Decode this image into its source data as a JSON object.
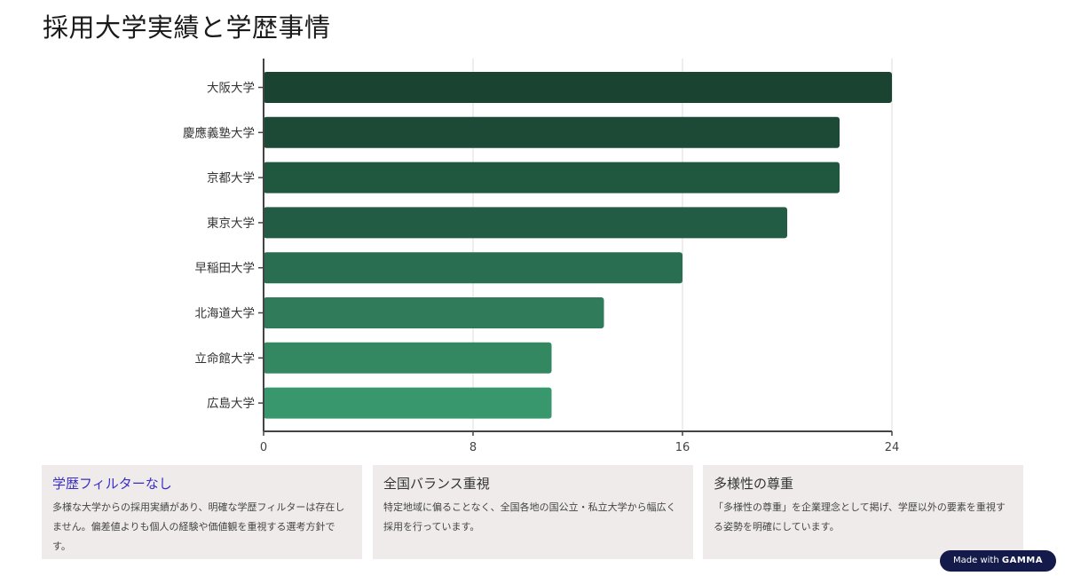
{
  "page": {
    "title": "採用大学実績と学歴事情"
  },
  "chart_data": {
    "type": "bar",
    "orientation": "horizontal",
    "categories": [
      "大阪大学",
      "慶應義塾大学",
      "京都大学",
      "東京大学",
      "早稲田大学",
      "北海道大学",
      "立命館大学",
      "広島大学"
    ],
    "values": [
      24,
      22,
      22,
      20,
      16,
      13,
      11,
      11
    ],
    "xlim": [
      0,
      24
    ],
    "x_ticks": [
      "0",
      "8",
      "16",
      "24"
    ],
    "grid": "vertical",
    "colors": [
      "#1b4332",
      "#1d4a37",
      "#20573f",
      "#235c44",
      "#2a6e52",
      "#2f7b5a",
      "#338862",
      "#38976c"
    ],
    "title": "",
    "xlabel": "",
    "ylabel": ""
  },
  "cards": [
    {
      "title": "学歴フィルターなし",
      "title_color": "#3a2ec4",
      "text": "多様な大学からの採用実績があり、明確な学歴フィルターは存在しません。偏差値よりも個人の経験や価値観を重視する選考方針です。"
    },
    {
      "title": "全国バランス重視",
      "text": "特定地域に偏ることなく、全国各地の国公立・私立大学から幅広く採用を行っています。"
    },
    {
      "title": "多様性の尊重",
      "text": "「多様性の尊重」を企業理念として掲げ、学歴以外の要素を重視する姿勢を明確にしています。"
    }
  ],
  "badge": {
    "prefix": "Made with",
    "brand": "GAMMA"
  }
}
